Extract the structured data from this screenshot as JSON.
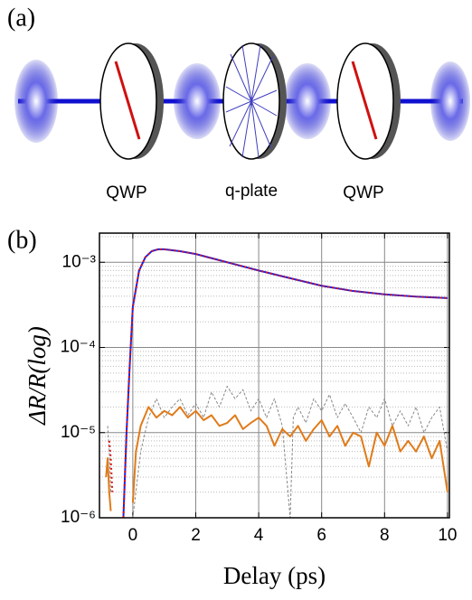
{
  "panels": {
    "a": "(a)",
    "b": "(b)"
  },
  "diagram": {
    "labels": [
      "QWP",
      "q-plate",
      "QWP"
    ]
  },
  "chart_data": {
    "type": "line",
    "x_label": "Delay (ps)",
    "y_label": "ΔR/R(log)",
    "xlim": [
      -1.06,
      10.06
    ],
    "xticks": [
      0,
      2,
      4,
      6,
      8,
      10
    ],
    "ylim": [
      1e-06,
      0.0022
    ],
    "log_y": true,
    "yticks": [
      {
        "value": 1e-06,
        "label": "10⁻⁶"
      },
      {
        "value": 1e-05,
        "label": "10⁻⁵"
      },
      {
        "value": 0.0001,
        "label": "10⁻⁴"
      },
      {
        "value": 0.001,
        "label": "10⁻³"
      }
    ],
    "grid": true,
    "series": [
      {
        "color": "#888888",
        "dash": "3,2",
        "width": 1,
        "x": [
          -0.8,
          -0.75,
          -0.7,
          -0.5,
          0,
          0.25,
          0.5,
          0.75,
          1,
          1.25,
          1.5,
          1.75,
          2,
          2.25,
          2.5,
          2.75,
          3,
          3.25,
          3.5,
          3.75,
          4,
          4.25,
          4.5,
          4.75,
          5,
          5.1,
          5.25,
          5.5,
          5.75,
          6,
          6.25,
          6.5,
          6.75,
          7,
          7.25,
          7.5,
          7.75,
          8,
          8.25,
          8.5,
          8.75,
          9,
          9.25,
          9.5,
          9.75,
          10
        ],
        "values": [
          1.2e-05,
          6e-06,
          2e-06,
          null,
          1e-06,
          6e-06,
          1.5e-05,
          2.5e-05,
          1.5e-05,
          2e-05,
          2.5e-05,
          1.6e-05,
          2.2e-05,
          1.5e-05,
          3e-05,
          2e-05,
          3.5e-05,
          2.5e-05,
          3.2e-05,
          1.8e-05,
          2.5e-05,
          1.5e-05,
          2.5e-05,
          1.2e-05,
          1e-06,
          1.5e-05,
          2e-05,
          1.3e-05,
          2.5e-05,
          1.8e-05,
          2.8e-05,
          1.5e-05,
          2.2e-05,
          1.5e-05,
          1e-05,
          2e-05,
          1.5e-05,
          2.5e-05,
          1.2e-05,
          1.8e-05,
          1.2e-05,
          2e-05,
          1e-05,
          1.5e-05,
          2e-05,
          6e-06
        ]
      },
      {
        "color": "#e07b1a",
        "dash": "",
        "width": 2,
        "x": [
          -0.85,
          -0.8,
          -0.75,
          -0.7,
          -0.5,
          0,
          0.1,
          0.25,
          0.5,
          0.75,
          1,
          1.25,
          1.5,
          1.75,
          2,
          2.25,
          2.5,
          2.75,
          3,
          3.25,
          3.5,
          3.75,
          4,
          4.25,
          4.5,
          4.75,
          5,
          5.25,
          5.5,
          5.75,
          6,
          6.25,
          6.5,
          6.75,
          7,
          7.25,
          7.5,
          7.75,
          8,
          8.25,
          8.5,
          8.75,
          9,
          9.25,
          9.5,
          9.75,
          10
        ],
        "values": [
          3e-06,
          5e-06,
          2e-06,
          1.2e-06,
          null,
          1.5e-06,
          6e-06,
          1.2e-05,
          2e-05,
          1.5e-05,
          1.8e-05,
          1.6e-05,
          2e-05,
          1.5e-05,
          1.8e-05,
          1.4e-05,
          1.6e-05,
          1.2e-05,
          1.3e-05,
          1.6e-05,
          1.1e-05,
          1.3e-05,
          1.5e-05,
          1.2e-05,
          7e-06,
          1.1e-05,
          9e-06,
          1.2e-05,
          8e-06,
          1.1e-05,
          1.4e-05,
          9e-06,
          1.2e-05,
          7e-06,
          1e-05,
          9e-06,
          4e-06,
          1e-05,
          7e-06,
          1.2e-05,
          6e-06,
          8e-06,
          6e-06,
          9e-06,
          5e-06,
          8e-06,
          2e-06
        ]
      },
      {
        "color": "#2222dd",
        "dash": "",
        "width": 2,
        "x": [
          -0.3,
          -0.2,
          -0.1,
          0,
          0.2,
          0.4,
          0.6,
          0.8,
          1,
          1.5,
          2,
          3,
          4,
          5,
          6,
          7,
          8,
          9,
          10
        ],
        "values": [
          1e-06,
          1e-05,
          6e-05,
          0.0003,
          0.0008,
          0.00115,
          0.00135,
          0.00142,
          0.00142,
          0.00135,
          0.00125,
          0.001,
          0.0008,
          0.00065,
          0.00053,
          0.00046,
          0.00042,
          0.000395,
          0.00038
        ]
      },
      {
        "color": "#dd1111",
        "dash": "2,3",
        "width": 2,
        "x": [
          -0.75,
          -0.7,
          -0.65,
          -0.5,
          -0.3,
          -0.2,
          -0.1,
          0,
          0.2,
          0.4,
          0.6,
          0.8,
          1,
          1.5,
          2,
          3,
          4,
          5,
          6,
          7,
          8,
          9,
          10
        ],
        "values": [
          8e-06,
          5e-06,
          2e-06,
          null,
          1e-06,
          1e-05,
          6e-05,
          0.0003,
          0.0008,
          0.00115,
          0.00135,
          0.00142,
          0.00142,
          0.00135,
          0.00125,
          0.001,
          0.0008,
          0.00065,
          0.00053,
          0.00046,
          0.00042,
          0.000395,
          0.00038
        ]
      }
    ]
  }
}
